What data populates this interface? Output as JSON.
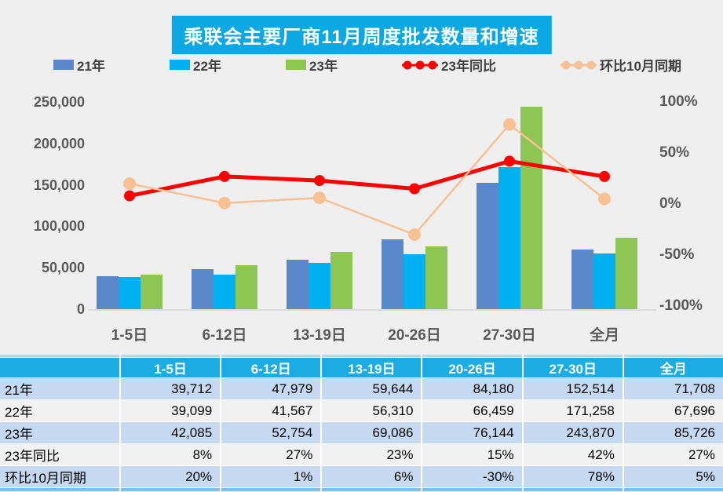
{
  "title": {
    "text": "乘联会主要厂商11月周度批发数量和增速",
    "bg_color": "#0CA8E4",
    "text_color": "#FFFFFF"
  },
  "legend": [
    {
      "label": "21年",
      "glyph": "bar",
      "color": "#5B87CB"
    },
    {
      "label": "22年",
      "glyph": "bar",
      "color": "#00B0F0"
    },
    {
      "label": "23年",
      "glyph": "bar",
      "color": "#8DC653"
    },
    {
      "label": "23年同比",
      "glyph": "line",
      "color": "#FF0000"
    },
    {
      "label": "环比10月同期",
      "glyph": "line",
      "color": "#F7C194"
    }
  ],
  "chart_data": {
    "type": "bar+line combo",
    "grid": "off",
    "legend_position": "top",
    "categories": [
      "1-5日",
      "6-12日",
      "13-19日",
      "20-26日",
      "27-30日",
      "全月"
    ],
    "left_axis": {
      "min": 0,
      "max": 250000,
      "ticks": [
        {
          "v": 0,
          "label": "0"
        },
        {
          "v": 50000,
          "label": "50,000"
        },
        {
          "v": 100000,
          "label": "100,000"
        },
        {
          "v": 150000,
          "label": "150,000"
        },
        {
          "v": 200000,
          "label": "200,000"
        },
        {
          "v": 250000,
          "label": "250,000"
        }
      ]
    },
    "right_axis": {
      "min": -100,
      "max": 100,
      "ticks": [
        {
          "v": 100,
          "label": "100%"
        },
        {
          "v": 50,
          "label": "50%"
        },
        {
          "v": 0,
          "label": "0%"
        },
        {
          "v": -50,
          "label": "-50%"
        },
        {
          "v": -100,
          "label": "-100%"
        }
      ]
    },
    "series": [
      {
        "name": "21年",
        "type": "bar",
        "axis": "left",
        "color": "#5B87CB",
        "values": [
          39712,
          47979,
          59644,
          84180,
          152514,
          71708
        ]
      },
      {
        "name": "22年",
        "type": "bar",
        "axis": "left",
        "color": "#00B0F0",
        "values": [
          39099,
          41567,
          56310,
          66459,
          171258,
          67696
        ]
      },
      {
        "name": "23年",
        "type": "bar",
        "axis": "left",
        "color": "#8DC653",
        "values": [
          42085,
          52754,
          69086,
          76144,
          243870,
          85726
        ]
      },
      {
        "name": "23年同比",
        "type": "line",
        "axis": "right",
        "color": "#FF0000",
        "stroke_width": 5,
        "marker_r": 7,
        "values": [
          8,
          27,
          23,
          15,
          42,
          27
        ]
      },
      {
        "name": "环比10月同期",
        "type": "line",
        "axis": "right",
        "color": "#F7C194",
        "stroke_width": 2.5,
        "marker_r": 8,
        "values": [
          20,
          1,
          6,
          -30,
          78,
          5
        ]
      }
    ]
  },
  "table": {
    "headers": [
      "",
      "1-5日",
      "6-12日",
      "13-19日",
      "20-26日",
      "27-30日",
      "全月"
    ],
    "rows": [
      {
        "label": "21年",
        "shade": "blue",
        "values": [
          "39,712",
          "47,979",
          "59,644",
          "84,180",
          "152,514",
          "71,708"
        ]
      },
      {
        "label": "22年",
        "shade": "grey",
        "values": [
          "39,099",
          "41,567",
          "56,310",
          "66,459",
          "171,258",
          "67,696"
        ]
      },
      {
        "label": "23年",
        "shade": "blue",
        "values": [
          "42,085",
          "52,754",
          "69,086",
          "76,144",
          "243,870",
          "85,726"
        ]
      },
      {
        "label": "23年同比",
        "shade": "grey",
        "values": [
          "8%",
          "27%",
          "23%",
          "15%",
          "42%",
          "27%"
        ]
      },
      {
        "label": "环比10月同期",
        "shade": "blue",
        "values": [
          "20%",
          "1%",
          "6%",
          "-30%",
          "78%",
          "5%"
        ]
      }
    ]
  }
}
